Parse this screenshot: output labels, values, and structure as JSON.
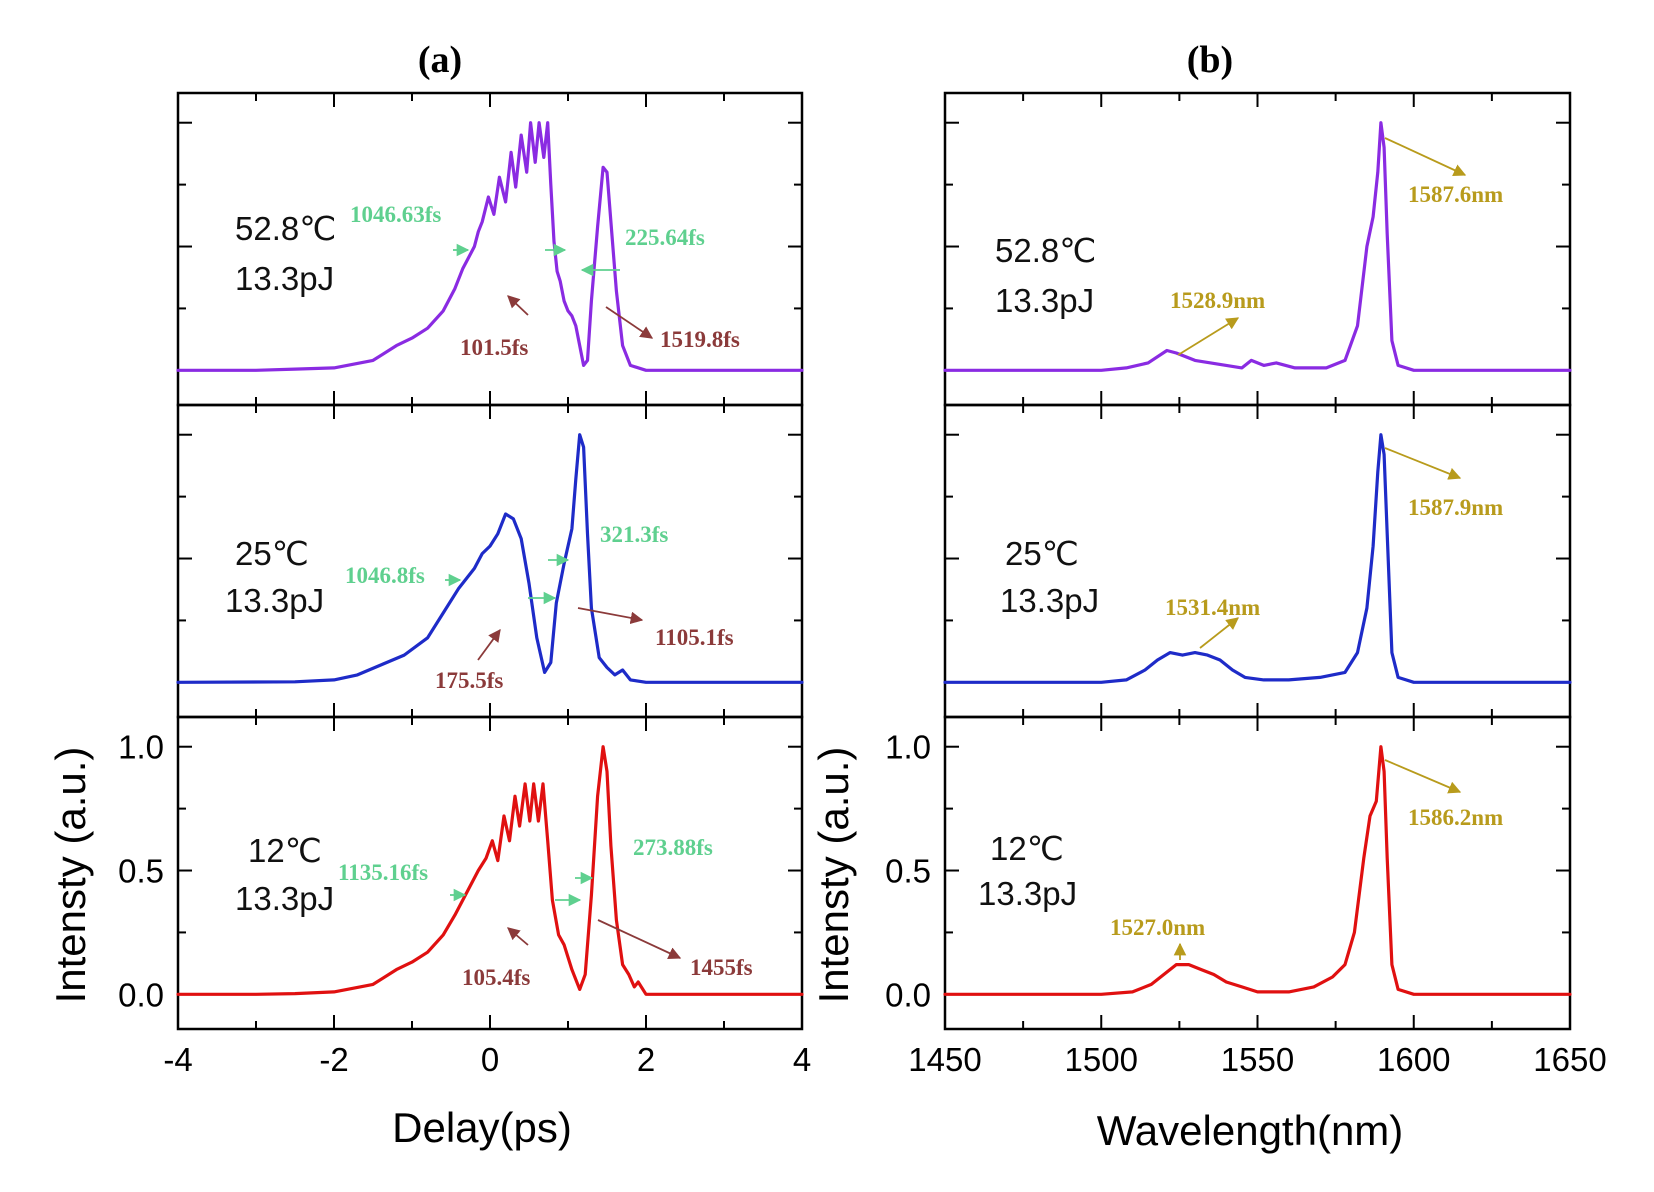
{
  "colors": {
    "T52.8": "#8a2be2",
    "T25": "#1e2bc8",
    "T12": "#e01010",
    "width_ann": "#5fd08f",
    "time_ann": "#8b3a3a",
    "wl_ann": "#b89b1c"
  },
  "chart_data": [
    {
      "id": "a",
      "panel_label": "(a)",
      "type": "line",
      "xlabel": "Delay(ps)",
      "ylabel": "Intensty (a.u.)",
      "xlim": [
        -4,
        4
      ],
      "ylim": [
        -0.14,
        1.12
      ],
      "xticks": [
        "-4",
        "-2",
        "0",
        "2",
        "4"
      ],
      "yticks": [
        "0.0",
        "0.5",
        "1.0"
      ],
      "panels": [
        {
          "temp": "52.8℃",
          "energy": "13.3pJ",
          "color_key": "T52.8",
          "series": [
            [
              -4,
              0
            ],
            [
              -3,
              0
            ],
            [
              -2.5,
              0.005
            ],
            [
              -2,
              0.01
            ],
            [
              -1.5,
              0.04
            ],
            [
              -1.2,
              0.1
            ],
            [
              -1,
              0.13
            ],
            [
              -0.8,
              0.17
            ],
            [
              -0.6,
              0.24
            ],
            [
              -0.45,
              0.33
            ],
            [
              -0.35,
              0.41
            ],
            [
              -0.3,
              0.44
            ],
            [
              -0.2,
              0.5
            ],
            [
              -0.15,
              0.56
            ],
            [
              -0.1,
              0.6
            ],
            [
              -0.02,
              0.7
            ],
            [
              0.05,
              0.63
            ],
            [
              0.12,
              0.78
            ],
            [
              0.2,
              0.68
            ],
            [
              0.27,
              0.88
            ],
            [
              0.33,
              0.74
            ],
            [
              0.4,
              0.95
            ],
            [
              0.47,
              0.8
            ],
            [
              0.52,
              1.0
            ],
            [
              0.58,
              0.84
            ],
            [
              0.63,
              1.0
            ],
            [
              0.69,
              0.86
            ],
            [
              0.74,
              1.0
            ],
            [
              0.78,
              0.75
            ],
            [
              0.82,
              0.52
            ],
            [
              0.86,
              0.4
            ],
            [
              0.9,
              0.36
            ],
            [
              0.95,
              0.28
            ],
            [
              1.0,
              0.24
            ],
            [
              1.05,
              0.22
            ],
            [
              1.1,
              0.18
            ],
            [
              1.15,
              0.1
            ],
            [
              1.2,
              0.02
            ],
            [
              1.25,
              0.04
            ],
            [
              1.3,
              0.28
            ],
            [
              1.38,
              0.58
            ],
            [
              1.45,
              0.82
            ],
            [
              1.5,
              0.8
            ],
            [
              1.55,
              0.6
            ],
            [
              1.62,
              0.32
            ],
            [
              1.7,
              0.1
            ],
            [
              1.8,
              0.02
            ],
            [
              2,
              0
            ],
            [
              3,
              0
            ],
            [
              4,
              0
            ]
          ],
          "annotations": [
            {
              "text": "1046.63fs",
              "kind": "width"
            },
            {
              "text": "225.64fs",
              "kind": "width"
            },
            {
              "text": "101.5fs",
              "kind": "time"
            },
            {
              "text": "1519.8fs",
              "kind": "time"
            }
          ]
        },
        {
          "temp": "25℃",
          "energy": "13.3pJ",
          "color_key": "T25",
          "series": [
            [
              -4,
              0
            ],
            [
              -2.5,
              0.002
            ],
            [
              -2,
              0.01
            ],
            [
              -1.7,
              0.03
            ],
            [
              -1.4,
              0.07
            ],
            [
              -1.1,
              0.11
            ],
            [
              -0.8,
              0.18
            ],
            [
              -0.6,
              0.28
            ],
            [
              -0.4,
              0.38
            ],
            [
              -0.2,
              0.46
            ],
            [
              -0.1,
              0.52
            ],
            [
              0,
              0.55
            ],
            [
              0.1,
              0.6
            ],
            [
              0.2,
              0.68
            ],
            [
              0.3,
              0.66
            ],
            [
              0.4,
              0.58
            ],
            [
              0.5,
              0.4
            ],
            [
              0.6,
              0.18
            ],
            [
              0.7,
              0.04
            ],
            [
              0.78,
              0.08
            ],
            [
              0.85,
              0.32
            ],
            [
              0.95,
              0.48
            ],
            [
              1.05,
              0.62
            ],
            [
              1.1,
              0.82
            ],
            [
              1.15,
              1.0
            ],
            [
              1.2,
              0.95
            ],
            [
              1.25,
              0.6
            ],
            [
              1.3,
              0.3
            ],
            [
              1.4,
              0.1
            ],
            [
              1.5,
              0.06
            ],
            [
              1.6,
              0.03
            ],
            [
              1.7,
              0.05
            ],
            [
              1.8,
              0.01
            ],
            [
              2,
              0
            ],
            [
              3,
              0
            ],
            [
              4,
              0
            ]
          ],
          "annotations": [
            {
              "text": "1046.8fs",
              "kind": "width"
            },
            {
              "text": "321.3fs",
              "kind": "width"
            },
            {
              "text": "175.5fs",
              "kind": "time"
            },
            {
              "text": "1105.1fs",
              "kind": "time"
            }
          ]
        },
        {
          "temp": "12℃",
          "energy": "13.3pJ",
          "color_key": "T12",
          "series": [
            [
              -4,
              0
            ],
            [
              -3,
              0
            ],
            [
              -2.5,
              0.003
            ],
            [
              -2,
              0.01
            ],
            [
              -1.5,
              0.04
            ],
            [
              -1.2,
              0.1
            ],
            [
              -1,
              0.13
            ],
            [
              -0.8,
              0.17
            ],
            [
              -0.6,
              0.24
            ],
            [
              -0.45,
              0.32
            ],
            [
              -0.35,
              0.38
            ],
            [
              -0.25,
              0.44
            ],
            [
              -0.15,
              0.5
            ],
            [
              -0.05,
              0.55
            ],
            [
              0.03,
              0.62
            ],
            [
              0.1,
              0.54
            ],
            [
              0.18,
              0.72
            ],
            [
              0.25,
              0.62
            ],
            [
              0.32,
              0.8
            ],
            [
              0.38,
              0.68
            ],
            [
              0.45,
              0.85
            ],
            [
              0.51,
              0.7
            ],
            [
              0.56,
              0.85
            ],
            [
              0.62,
              0.7
            ],
            [
              0.68,
              0.85
            ],
            [
              0.74,
              0.62
            ],
            [
              0.8,
              0.38
            ],
            [
              0.88,
              0.24
            ],
            [
              0.95,
              0.2
            ],
            [
              1.05,
              0.1
            ],
            [
              1.15,
              0.02
            ],
            [
              1.22,
              0.08
            ],
            [
              1.3,
              0.4
            ],
            [
              1.38,
              0.8
            ],
            [
              1.45,
              1.0
            ],
            [
              1.5,
              0.9
            ],
            [
              1.55,
              0.6
            ],
            [
              1.62,
              0.3
            ],
            [
              1.7,
              0.12
            ],
            [
              1.78,
              0.08
            ],
            [
              1.85,
              0.03
            ],
            [
              1.9,
              0.05
            ],
            [
              2,
              0
            ],
            [
              3,
              0
            ],
            [
              4,
              0
            ]
          ],
          "annotations": [
            {
              "text": "1135.16fs",
              "kind": "width"
            },
            {
              "text": "273.88fs",
              "kind": "width"
            },
            {
              "text": "105.4fs",
              "kind": "time"
            },
            {
              "text": "1455fs",
              "kind": "time"
            }
          ]
        }
      ]
    },
    {
      "id": "b",
      "panel_label": "(b)",
      "type": "line",
      "xlabel": "Wavelength(nm)",
      "ylabel": "Intensty (a.u.)",
      "xlim": [
        1450,
        1650
      ],
      "ylim": [
        -0.14,
        1.12
      ],
      "xticks": [
        "1450",
        "1500",
        "1550",
        "1600",
        "1650"
      ],
      "yticks": [
        "0.0",
        "0.5",
        "1.0"
      ],
      "panels": [
        {
          "temp": "52.8℃",
          "energy": "13.3pJ",
          "color_key": "T52.8",
          "series": [
            [
              1450,
              0
            ],
            [
              1500,
              0
            ],
            [
              1508,
              0.01
            ],
            [
              1515,
              0.03
            ],
            [
              1521,
              0.08
            ],
            [
              1524,
              0.07
            ],
            [
              1530,
              0.04
            ],
            [
              1540,
              0.02
            ],
            [
              1545,
              0.01
            ],
            [
              1548,
              0.04
            ],
            [
              1552,
              0.02
            ],
            [
              1556,
              0.03
            ],
            [
              1562,
              0.01
            ],
            [
              1572,
              0.01
            ],
            [
              1578,
              0.04
            ],
            [
              1582,
              0.18
            ],
            [
              1585,
              0.5
            ],
            [
              1587,
              0.62
            ],
            [
              1588.5,
              0.8
            ],
            [
              1589.5,
              1.0
            ],
            [
              1590.5,
              0.9
            ],
            [
              1591.5,
              0.55
            ],
            [
              1593,
              0.12
            ],
            [
              1595,
              0.02
            ],
            [
              1600,
              0
            ],
            [
              1650,
              0
            ]
          ],
          "annotations": [
            {
              "text": "1528.9nm",
              "kind": "wl"
            },
            {
              "text": "1587.6nm",
              "kind": "wl"
            }
          ]
        },
        {
          "temp": "25℃",
          "energy": "13.3pJ",
          "color_key": "T25",
          "series": [
            [
              1450,
              0
            ],
            [
              1500,
              0
            ],
            [
              1508,
              0.01
            ],
            [
              1514,
              0.05
            ],
            [
              1518,
              0.09
            ],
            [
              1522,
              0.12
            ],
            [
              1526,
              0.11
            ],
            [
              1530,
              0.12
            ],
            [
              1534,
              0.11
            ],
            [
              1538,
              0.09
            ],
            [
              1542,
              0.05
            ],
            [
              1546,
              0.02
            ],
            [
              1552,
              0.01
            ],
            [
              1560,
              0.01
            ],
            [
              1570,
              0.02
            ],
            [
              1578,
              0.04
            ],
            [
              1582,
              0.12
            ],
            [
              1585,
              0.3
            ],
            [
              1587,
              0.55
            ],
            [
              1588.5,
              0.85
            ],
            [
              1589.5,
              1.0
            ],
            [
              1590.5,
              0.92
            ],
            [
              1591.5,
              0.6
            ],
            [
              1593,
              0.12
            ],
            [
              1595,
              0.02
            ],
            [
              1600,
              0
            ],
            [
              1650,
              0
            ]
          ],
          "annotations": [
            {
              "text": "1531.4nm",
              "kind": "wl"
            },
            {
              "text": "1587.9nm",
              "kind": "wl"
            }
          ]
        },
        {
          "temp": "12℃",
          "energy": "13.3pJ",
          "color_key": "T12",
          "series": [
            [
              1450,
              0
            ],
            [
              1500,
              0
            ],
            [
              1510,
              0.01
            ],
            [
              1516,
              0.04
            ],
            [
              1520,
              0.08
            ],
            [
              1524,
              0.12
            ],
            [
              1528,
              0.12
            ],
            [
              1532,
              0.1
            ],
            [
              1536,
              0.08
            ],
            [
              1540,
              0.05
            ],
            [
              1545,
              0.03
            ],
            [
              1550,
              0.01
            ],
            [
              1560,
              0.01
            ],
            [
              1568,
              0.03
            ],
            [
              1574,
              0.07
            ],
            [
              1578,
              0.12
            ],
            [
              1581,
              0.25
            ],
            [
              1584,
              0.55
            ],
            [
              1586,
              0.72
            ],
            [
              1588,
              0.78
            ],
            [
              1589.5,
              1.0
            ],
            [
              1590.5,
              0.9
            ],
            [
              1591.5,
              0.55
            ],
            [
              1593,
              0.12
            ],
            [
              1595,
              0.02
            ],
            [
              1600,
              0
            ],
            [
              1650,
              0
            ]
          ],
          "annotations": [
            {
              "text": "1527.0nm",
              "kind": "wl"
            },
            {
              "text": "1586.2nm",
              "kind": "wl"
            }
          ]
        }
      ]
    }
  ]
}
